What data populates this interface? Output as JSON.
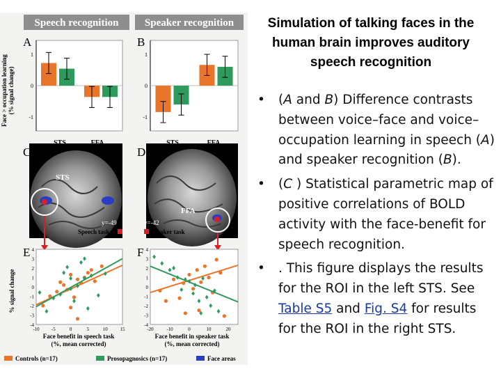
{
  "figure": {
    "header_left": "Speech recognition",
    "header_right": "Speaker recognition",
    "y_axis_label_top": "Face > occupation learning",
    "y_axis_label_top_unit": "(% signal change)",
    "y_axis_label_bottom": "% signal change",
    "panel_letters": [
      "A",
      "B",
      "C",
      "D",
      "E",
      "F"
    ],
    "bar_ticks": [
      "1",
      "0",
      "-1"
    ],
    "bar_categories": [
      "STS",
      "FFA"
    ],
    "brain_left_label": "STS",
    "brain_right_label": "FFA",
    "brain_left_coord": "y=-49",
    "brain_right_coord": "y=-42",
    "brain_left_caption": "Speech task",
    "brain_right_caption": "Speaker task",
    "scatter_e_yticks": [
      "4",
      "3",
      "2",
      "1",
      "0",
      "-1",
      "-2",
      "-3",
      "-4"
    ],
    "scatter_e_xticks": [
      "-10",
      "-5",
      "0",
      "5",
      "10",
      "15"
    ],
    "scatter_f_yticks": [
      "4",
      "3",
      "2",
      "1",
      "0",
      "-1",
      "-2",
      "-3",
      "-4"
    ],
    "scatter_f_xticks": [
      "-20",
      "-10",
      "0",
      "10",
      "20"
    ],
    "scatter_e_xlabel_1": "Face benefit in speech task",
    "scatter_e_xlabel_2": "(%, mean corrected)",
    "scatter_f_xlabel_1": "Face benefit in speaker task",
    "scatter_f_xlabel_2": "(%, mean corrected)",
    "legend": [
      {
        "label": "Controls (n=17)",
        "color": "#e8752a"
      },
      {
        "label": "Prosopagnosics (n=17)",
        "color": "#2e9a5e"
      },
      {
        "label": "Face areas",
        "color": "#2a3ec2"
      }
    ],
    "colors": {
      "header": "#8e8e8e",
      "controls": "#e8752a",
      "prosopagnosics": "#2e9a5e",
      "marker": "#d8202a"
    }
  },
  "chart_data": [
    {
      "type": "bar",
      "panel": "A",
      "categories": [
        "STS",
        "FFA"
      ],
      "series": [
        {
          "name": "Controls (n=17)",
          "values": [
            0.6,
            -0.3
          ]
        },
        {
          "name": "Prosopagnosics (n=17)",
          "values": [
            0.45,
            -0.3
          ]
        }
      ],
      "ylabel": "Face > occupation learning (% signal change)",
      "ylim": [
        -1.2,
        1.2
      ]
    },
    {
      "type": "bar",
      "panel": "B",
      "categories": [
        "STS",
        "FFA"
      ],
      "series": [
        {
          "name": "Controls (n=17)",
          "values": [
            -0.7,
            0.55
          ]
        },
        {
          "name": "Prosopagnosics (n=17)",
          "values": [
            -0.5,
            0.5
          ]
        }
      ],
      "ylim": [
        -1.2,
        1.2
      ]
    },
    {
      "type": "scatter",
      "panel": "E",
      "xlabel": "Face benefit in speech task (%, mean corrected)",
      "ylabel": "% signal change",
      "xlim": [
        -10,
        15
      ],
      "ylim": [
        -4,
        4
      ],
      "series": [
        {
          "name": "Controls (n=17)",
          "points": [
            [
              -6,
              -1.0
            ],
            [
              -4,
              -0.5
            ],
            [
              -3,
              0.5
            ],
            [
              -2,
              0.2
            ],
            [
              -1,
              -0.3
            ],
            [
              0,
              1.3
            ],
            [
              1,
              -1.1
            ],
            [
              2,
              0.8
            ],
            [
              3,
              0.4
            ],
            [
              4,
              1.0
            ],
            [
              5,
              1.5
            ],
            [
              7,
              0.6
            ],
            [
              -8,
              -2.0
            ],
            [
              0,
              -2.2
            ],
            [
              2,
              -3.4
            ],
            [
              6,
              1.8
            ],
            [
              9,
              2.2
            ]
          ],
          "fit": [
            [
              -10,
              -1.9
            ],
            [
              15,
              2.3
            ]
          ]
        },
        {
          "name": "Prosopagnosics (n=17)",
          "points": [
            [
              -9,
              -0.6
            ],
            [
              -5,
              -1.2
            ],
            [
              -3,
              -0.8
            ],
            [
              -2,
              1.5
            ],
            [
              -1,
              2.1
            ],
            [
              0,
              0.9
            ],
            [
              1,
              -1.5
            ],
            [
              2,
              0.1
            ],
            [
              3,
              2.6
            ],
            [
              4,
              3.0
            ],
            [
              5,
              -2.3
            ],
            [
              6,
              1.2
            ],
            [
              8,
              -0.9
            ],
            [
              0,
              -0.2
            ],
            [
              4,
              0.9
            ],
            [
              10,
              1.4
            ],
            [
              -7,
              -2.6
            ]
          ],
          "fit": [
            [
              -10,
              -2.1
            ],
            [
              15,
              3.0
            ]
          ]
        }
      ]
    },
    {
      "type": "scatter",
      "panel": "F",
      "xlabel": "Face benefit in speaker task (%, mean corrected)",
      "xlim": [
        -20,
        25
      ],
      "ylim": [
        -4,
        4
      ],
      "series": [
        {
          "name": "Controls (n=17)",
          "points": [
            [
              -15,
              -0.4
            ],
            [
              -12,
              -1.5
            ],
            [
              -8,
              0.8
            ],
            [
              -5,
              -1.2
            ],
            [
              -3,
              0.4
            ],
            [
              0,
              1.3
            ],
            [
              2,
              -0.2
            ],
            [
              4,
              1.8
            ],
            [
              6,
              0.5
            ],
            [
              8,
              2.2
            ],
            [
              10,
              1.0
            ],
            [
              12,
              -0.6
            ],
            [
              14,
              2.9
            ],
            [
              -2,
              -2.8
            ],
            [
              16,
              1.5
            ],
            [
              18,
              -3.1
            ],
            [
              5,
              -2.5
            ]
          ],
          "fit": [
            [
              -20,
              -0.6
            ],
            [
              25,
              2.3
            ]
          ]
        },
        {
          "name": "Prosopagnosics (n=17)",
          "points": [
            [
              -18,
              3.2
            ],
            [
              -14,
              2.5
            ],
            [
              -10,
              1.8
            ],
            [
              -6,
              1.0
            ],
            [
              -4,
              -0.3
            ],
            [
              -2,
              0.8
            ],
            [
              0,
              0.6
            ],
            [
              2,
              -0.7
            ],
            [
              3,
              0.2
            ],
            [
              5,
              -1.5
            ],
            [
              7,
              0.9
            ],
            [
              9,
              -1.1
            ],
            [
              11,
              -2.0
            ],
            [
              13,
              -0.4
            ],
            [
              15,
              -2.6
            ],
            [
              -8,
              2.0
            ],
            [
              6,
              -2.8
            ]
          ],
          "fit": [
            [
              -20,
              2.2
            ],
            [
              25,
              -1.6
            ]
          ]
        }
      ]
    }
  ],
  "slide": {
    "title": "Simulation of talking faces in the human brain improves auditory speech recognition",
    "bullets": [
      {
        "dot": "•",
        "t1": "(",
        "i1": "A",
        "t2": " and ",
        "i2": "B",
        "t3": ") Difference contrasts between voice–face and voice–occupation learning in speech (",
        "i3": "A",
        "t4": ") and speaker recognition (",
        "i4": "B",
        "t5": ")."
      },
      {
        "dot": "•",
        "t1": "(",
        "i1": "C",
        "t2": " ) Statistical parametric map of positive correlations of BOLD activity with the face-benefit for speech recognition."
      },
      {
        "dot": "•",
        "t1": ". This figure displays the results for the ROI in the left STS. See ",
        "link1": "Table S5",
        "t2": " and ",
        "link2": "Fig. S4",
        "t3": " for results for the ROI in the right STS."
      }
    ]
  }
}
